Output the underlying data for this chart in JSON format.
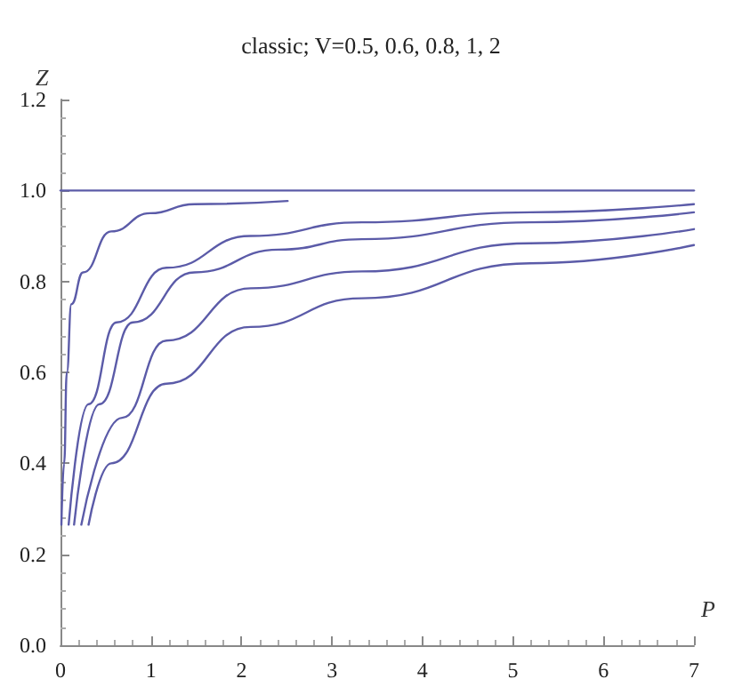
{
  "chart_data": {
    "type": "line",
    "title": "classic; V=0.5, 0.6, 0.8, 1, 2",
    "xlabel": "P",
    "ylabel": "Z",
    "xlim": [
      0,
      7
    ],
    "ylim": [
      0,
      1.2
    ],
    "xticks": [
      0,
      1,
      2,
      3,
      4,
      5,
      6,
      7
    ],
    "yticks": [
      {
        "value": 0,
        "label": "0.0"
      },
      {
        "value": 0.2,
        "label": "0.2"
      },
      {
        "value": 0.4,
        "label": "0.4"
      },
      {
        "value": 0.6,
        "label": "0.6"
      },
      {
        "value": 0.8,
        "label": "0.8"
      },
      {
        "value": 1,
        "label": "1.0"
      },
      {
        "value": 1.2,
        "label": "1.2"
      }
    ],
    "grid": false,
    "marker": "none",
    "line_style": "solid",
    "series": [
      {
        "color": "#5b5ba8",
        "x": [
          0,
          7
        ],
        "values": [
          1,
          1
        ]
      },
      {
        "color": "#5b5ba8",
        "x": [
          0.01,
          0.04,
          0.07,
          0.12,
          0.25,
          0.56,
          0.99,
          1.48,
          2.51
        ],
        "values": [
          0.265,
          0.4,
          0.6,
          0.75,
          0.82,
          0.91,
          0.95,
          0.97,
          0.977
        ]
      },
      {
        "color": "#5b5ba8",
        "x": [
          0.09,
          0.31,
          0.62,
          1.17,
          2.1,
          3.33,
          5.19,
          7
        ],
        "values": [
          0.265,
          0.53,
          0.71,
          0.83,
          0.9,
          0.93,
          0.952,
          0.97
        ]
      },
      {
        "color": "#5b5ba8",
        "x": [
          0.15,
          0.43,
          0.8,
          1.48,
          2.41,
          3.33,
          5.19,
          7
        ],
        "values": [
          0.265,
          0.53,
          0.71,
          0.82,
          0.87,
          0.893,
          0.93,
          0.952
        ]
      },
      {
        "color": "#5b5ba8",
        "x": [
          0.23,
          0.68,
          1.17,
          2.1,
          3.33,
          5.19,
          7
        ],
        "values": [
          0.265,
          0.5,
          0.67,
          0.785,
          0.822,
          0.884,
          0.915
        ]
      },
      {
        "color": "#5b5ba8",
        "x": [
          0.31,
          0.56,
          1.17,
          2.1,
          3.33,
          5.19,
          7
        ],
        "values": [
          0.265,
          0.4,
          0.575,
          0.7,
          0.763,
          0.84,
          0.88
        ]
      }
    ]
  }
}
